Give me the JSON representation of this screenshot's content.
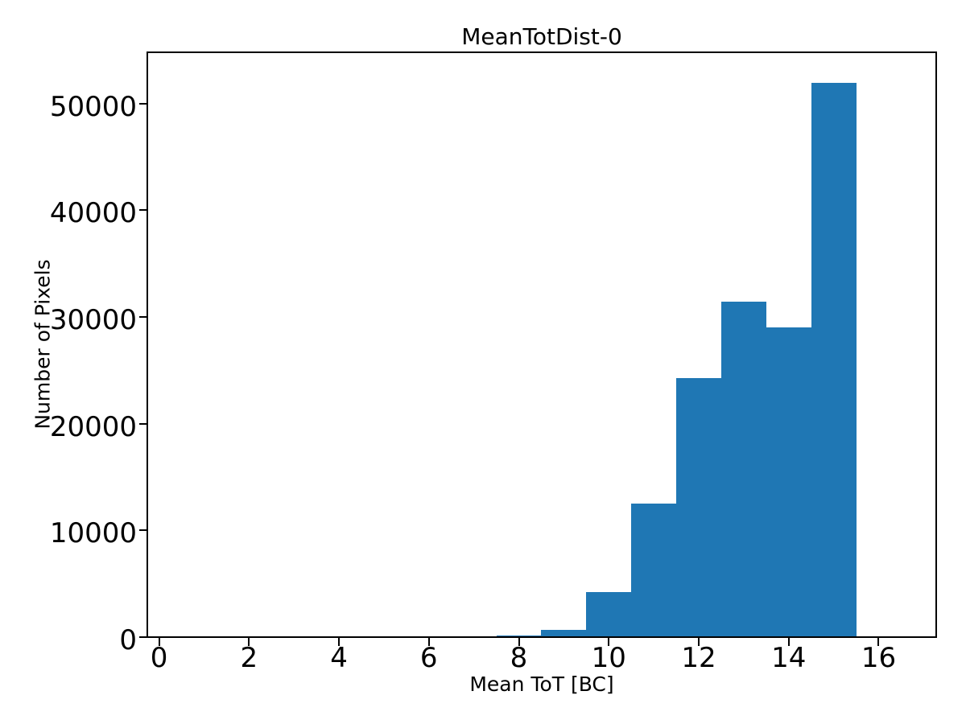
{
  "chart_data": {
    "type": "bar",
    "subtype": "histogram",
    "title": "MeanTotDist-0",
    "xlabel": "Mean ToT [BC]",
    "ylabel": "Number of Pixels",
    "bin_edges": [
      7.5,
      8.5,
      9.5,
      10.5,
      11.5,
      12.5,
      13.5,
      14.5,
      15.5
    ],
    "values": [
      150,
      700,
      4250,
      12500,
      24300,
      31450,
      29000,
      51900
    ],
    "xlim": [
      -0.26,
      17.28
    ],
    "ylim": [
      0,
      54800
    ],
    "xticks": [
      0,
      2,
      4,
      6,
      8,
      10,
      12,
      14,
      16
    ],
    "yticks": [
      0,
      10000,
      20000,
      30000,
      40000,
      50000
    ],
    "grid": false,
    "legend": null,
    "bar_color": "#1f77b4",
    "axis_color": "#000000",
    "background_color": "#ffffff"
  }
}
